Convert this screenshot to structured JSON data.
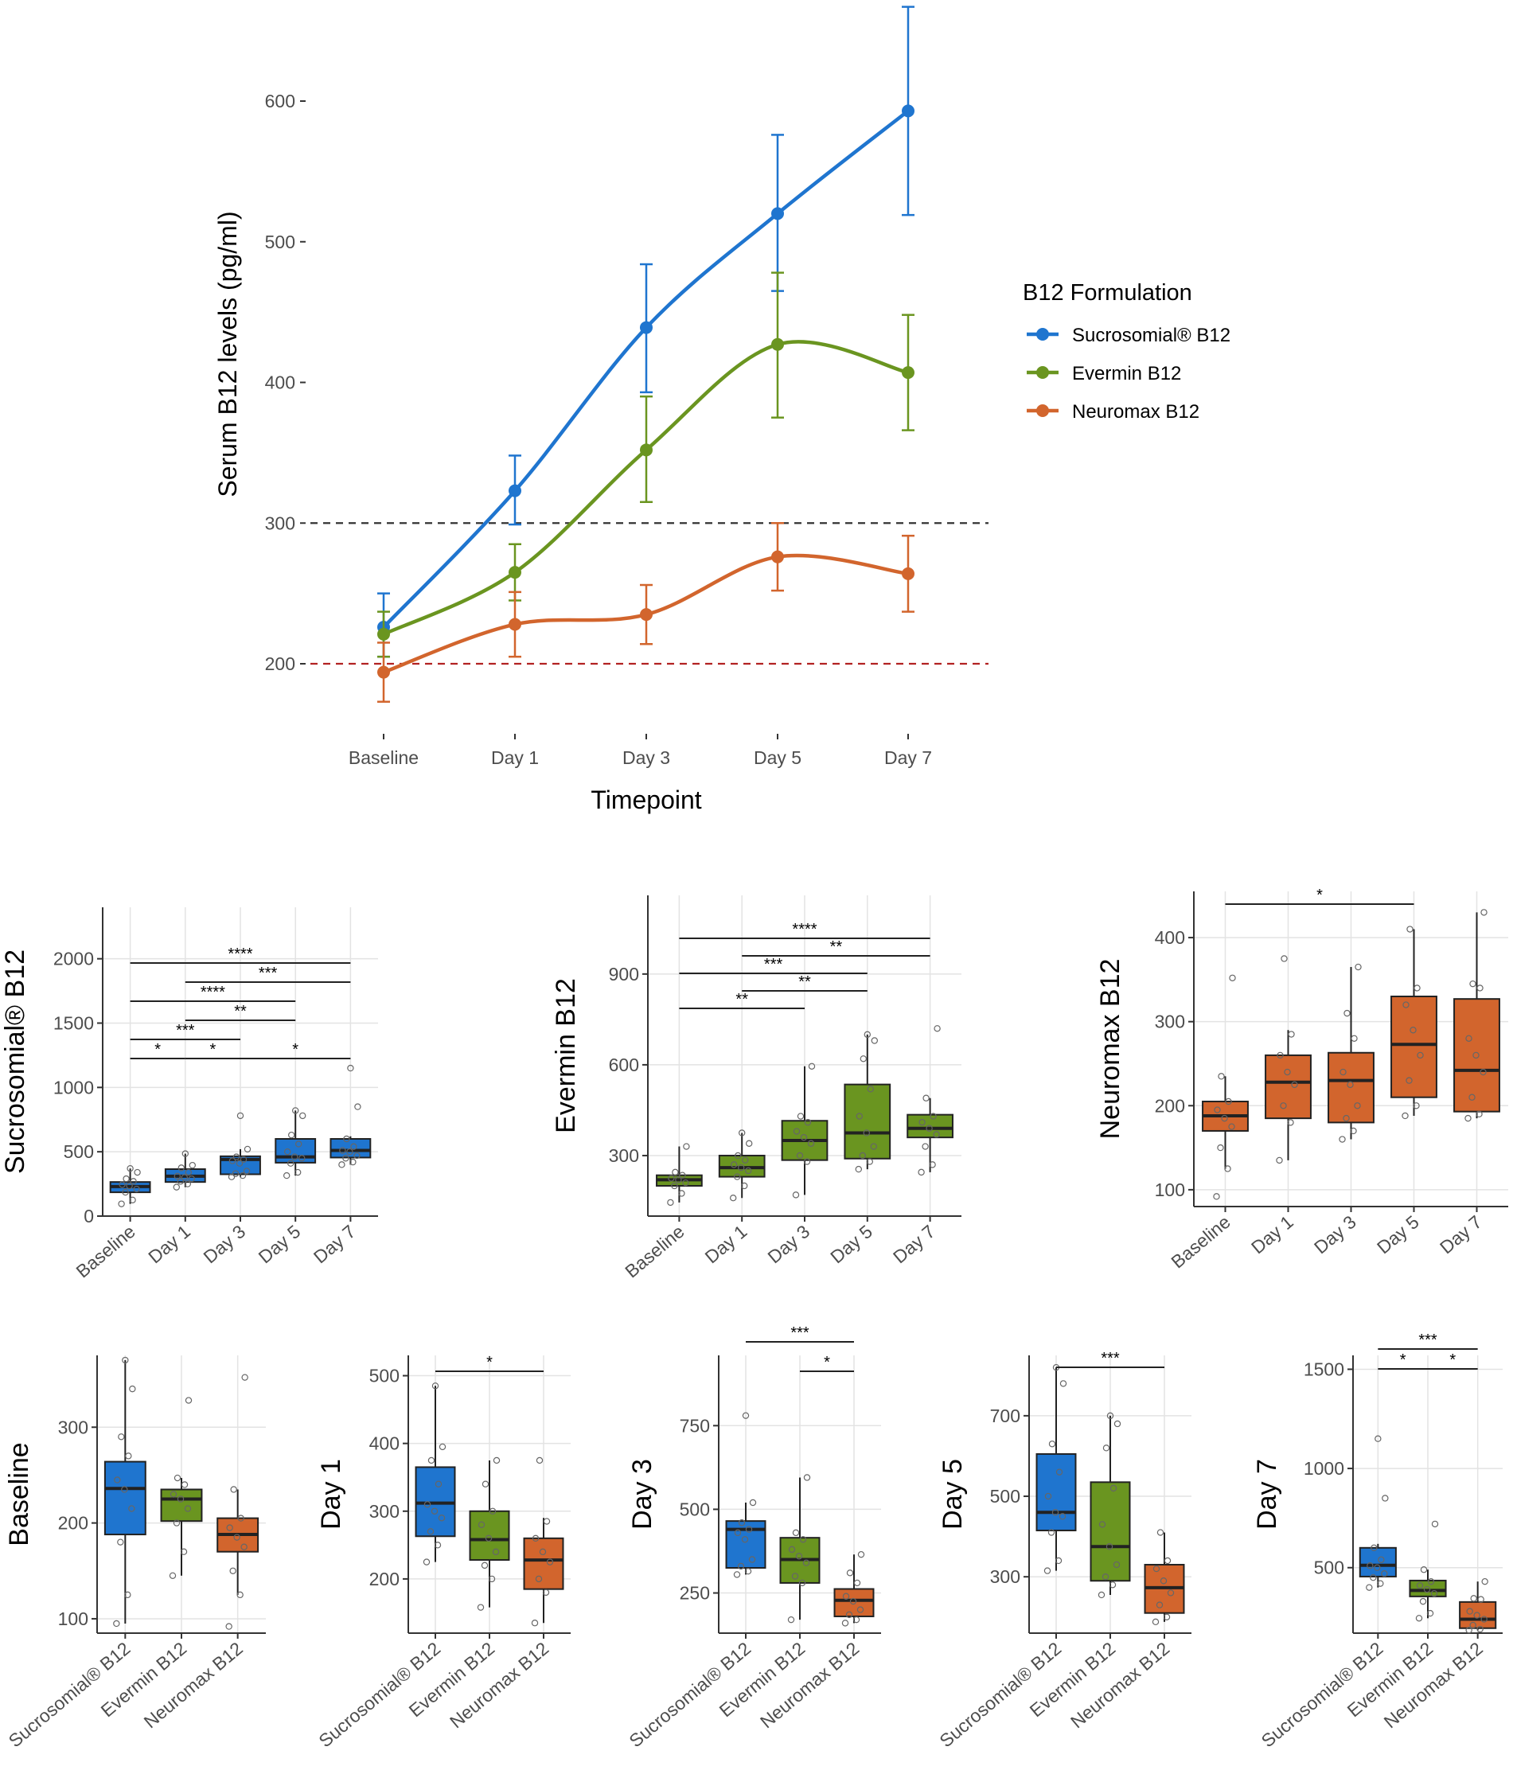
{
  "chart_data": [
    {
      "type": "line",
      "xlabel": "Timepoint",
      "ylabel": "Serum B12 levels (pg/ml)",
      "categories": [
        "Baseline",
        "Day 1",
        "Day 3",
        "Day 5",
        "Day 7"
      ],
      "yticks": [
        200,
        300,
        400,
        500,
        600
      ],
      "ylim": [
        160,
        670
      ],
      "reference_lines": [
        {
          "value": 300,
          "color": "#333333"
        },
        {
          "value": 200,
          "color": "#b22222"
        }
      ],
      "legend_title": "B12 Formulation",
      "series": [
        {
          "name": "Sucrosomial® B12",
          "color": "#1f75cf",
          "values": [
            226,
            323,
            439,
            520,
            593
          ],
          "lower": [
            205,
            299,
            393,
            465,
            519
          ],
          "upper": [
            250,
            348,
            484,
            576,
            667
          ]
        },
        {
          "name": "Evermin B12",
          "color": "#6a9520",
          "values": [
            221,
            265,
            352,
            427,
            407
          ],
          "lower": [
            205,
            245,
            315,
            375,
            366
          ],
          "upper": [
            237,
            285,
            390,
            478,
            448
          ]
        },
        {
          "name": "Neuromax B12",
          "color": "#d2652d",
          "values": [
            194,
            228,
            235,
            276,
            264
          ],
          "lower": [
            173,
            205,
            214,
            252,
            237
          ],
          "upper": [
            215,
            251,
            256,
            300,
            291
          ]
        }
      ]
    },
    {
      "type": "box",
      "title": "Sucrosomial® B12",
      "color": "#1f75cf",
      "categories": [
        "Baseline",
        "Day 1",
        "Day 3",
        "Day 5",
        "Day 7"
      ],
      "yticks": [
        0,
        500,
        1000,
        1500,
        2000
      ],
      "ylim": [
        0,
        2400
      ],
      "boxes": [
        {
          "q1": 185,
          "median": 230,
          "q3": 265,
          "lo": 95,
          "hi": 370
        },
        {
          "q1": 265,
          "median": 310,
          "q3": 365,
          "lo": 225,
          "hi": 485
        },
        {
          "q1": 325,
          "median": 440,
          "q3": 465,
          "lo": 305,
          "hi": 520
        },
        {
          "q1": 415,
          "median": 460,
          "q3": 600,
          "lo": 315,
          "hi": 820
        },
        {
          "q1": 455,
          "median": 510,
          "q3": 600,
          "lo": 400,
          "hi": 620
        }
      ],
      "points": [
        [
          95,
          125,
          185,
          210,
          235,
          245,
          270,
          290,
          340,
          370
        ],
        [
          225,
          250,
          270,
          290,
          300,
          310,
          340,
          375,
          395,
          485
        ],
        [
          305,
          315,
          330,
          350,
          410,
          430,
          440,
          460,
          520,
          780
        ],
        [
          315,
          340,
          410,
          450,
          460,
          500,
          560,
          630,
          780,
          820
        ],
        [
          400,
          420,
          450,
          470,
          500,
          510,
          540,
          600,
          850,
          1150
        ]
      ],
      "comparisons": [
        {
          "from": 0,
          "to": 1,
          "label": "*"
        },
        {
          "from": 0,
          "to": 2,
          "label": "***"
        },
        {
          "from": 0,
          "to": 3,
          "label": "****"
        },
        {
          "from": 0,
          "to": 4,
          "label": "****"
        },
        {
          "from": 1,
          "to": 2,
          "label": "*"
        },
        {
          "from": 1,
          "to": 3,
          "label": "**"
        },
        {
          "from": 1,
          "to": 4,
          "label": "***"
        },
        {
          "from": 2,
          "to": 4,
          "label": "*"
        }
      ]
    },
    {
      "type": "box",
      "title": "Evermin B12",
      "color": "#6a9520",
      "categories": [
        "Baseline",
        "Day 1",
        "Day 3",
        "Day 5",
        "Day 7"
      ],
      "yticks": [
        300,
        600,
        900
      ],
      "ylim": [
        100,
        1160
      ],
      "boxes": [
        {
          "q1": 200,
          "median": 220,
          "q3": 235,
          "lo": 145,
          "hi": 330
        },
        {
          "q1": 230,
          "median": 260,
          "q3": 300,
          "lo": 160,
          "hi": 375
        },
        {
          "q1": 285,
          "median": 350,
          "q3": 415,
          "lo": 170,
          "hi": 595
        },
        {
          "q1": 290,
          "median": 375,
          "q3": 535,
          "lo": 255,
          "hi": 700
        },
        {
          "q1": 360,
          "median": 390,
          "q3": 435,
          "lo": 245,
          "hi": 490
        }
      ],
      "points": [
        [
          145,
          175,
          200,
          210,
          220,
          225,
          235,
          245,
          330
        ],
        [
          160,
          200,
          230,
          250,
          260,
          270,
          285,
          300,
          340,
          375
        ],
        [
          170,
          280,
          300,
          340,
          360,
          380,
          410,
          430,
          595
        ],
        [
          255,
          280,
          300,
          330,
          375,
          430,
          520,
          620,
          680,
          700
        ],
        [
          245,
          270,
          330,
          370,
          390,
          410,
          430,
          490,
          720
        ]
      ],
      "comparisons": [
        {
          "from": 0,
          "to": 2,
          "label": "**"
        },
        {
          "from": 0,
          "to": 3,
          "label": "***"
        },
        {
          "from": 0,
          "to": 4,
          "label": "****"
        },
        {
          "from": 1,
          "to": 3,
          "label": "**"
        },
        {
          "from": 1,
          "to": 4,
          "label": "**"
        }
      ]
    },
    {
      "type": "box",
      "title": "Neuromax B12",
      "color": "#d2652d",
      "categories": [
        "Baseline",
        "Day 1",
        "Day 3",
        "Day 5",
        "Day 7"
      ],
      "yticks": [
        100,
        200,
        300,
        400
      ],
      "ylim": [
        80,
        455
      ],
      "boxes": [
        {
          "q1": 170,
          "median": 188,
          "q3": 205,
          "lo": 125,
          "hi": 235
        },
        {
          "q1": 185,
          "median": 228,
          "q3": 260,
          "lo": 135,
          "hi": 290
        },
        {
          "q1": 180,
          "median": 230,
          "q3": 263,
          "lo": 160,
          "hi": 365
        },
        {
          "q1": 210,
          "median": 273,
          "q3": 330,
          "lo": 188,
          "hi": 410
        },
        {
          "q1": 193,
          "median": 242,
          "q3": 327,
          "lo": 185,
          "hi": 430
        }
      ],
      "points": [
        [
          92,
          125,
          150,
          175,
          185,
          195,
          205,
          235,
          352
        ],
        [
          135,
          180,
          200,
          225,
          240,
          260,
          285,
          375
        ],
        [
          160,
          170,
          185,
          200,
          225,
          240,
          280,
          310,
          365
        ],
        [
          188,
          200,
          230,
          260,
          290,
          320,
          340,
          410
        ],
        [
          185,
          190,
          210,
          240,
          260,
          280,
          340,
          345,
          430
        ]
      ],
      "comparisons": [
        {
          "from": 0,
          "to": 3,
          "label": "*"
        }
      ]
    },
    {
      "type": "box",
      "title": "Baseline",
      "categories": [
        "Sucrosomial® B12",
        "Evermin B12",
        "Neuromax B12"
      ],
      "colors": [
        "#1f75cf",
        "#6a9520",
        "#d2652d"
      ],
      "yticks": [
        100,
        200,
        300
      ],
      "ylim": [
        85,
        375
      ],
      "boxes": [
        {
          "q1": 188,
          "median": 236,
          "q3": 264,
          "lo": 95,
          "hi": 370
        },
        {
          "q1": 202,
          "median": 225,
          "q3": 235,
          "lo": 145,
          "hi": 247
        },
        {
          "q1": 170,
          "median": 188,
          "q3": 205,
          "lo": 125,
          "hi": 235
        }
      ],
      "points": [
        [
          95,
          125,
          180,
          215,
          235,
          245,
          270,
          290,
          340,
          370
        ],
        [
          145,
          170,
          200,
          215,
          225,
          230,
          240,
          247,
          328
        ],
        [
          92,
          125,
          150,
          175,
          185,
          195,
          205,
          235,
          352
        ]
      ],
      "comparisons": []
    },
    {
      "type": "box",
      "title": "Day 1",
      "categories": [
        "Sucrosomial® B12",
        "Evermin B12",
        "Neuromax B12"
      ],
      "colors": [
        "#1f75cf",
        "#6a9520",
        "#d2652d"
      ],
      "yticks": [
        200,
        300,
        400,
        500
      ],
      "ylim": [
        120,
        530
      ],
      "boxes": [
        {
          "q1": 263,
          "median": 312,
          "q3": 365,
          "lo": 225,
          "hi": 485
        },
        {
          "q1": 228,
          "median": 258,
          "q3": 300,
          "lo": 158,
          "hi": 375
        },
        {
          "q1": 185,
          "median": 228,
          "q3": 260,
          "lo": 135,
          "hi": 290
        }
      ],
      "points": [
        [
          225,
          250,
          270,
          290,
          300,
          310,
          340,
          375,
          395,
          485
        ],
        [
          158,
          200,
          220,
          240,
          260,
          280,
          300,
          340,
          375
        ],
        [
          135,
          180,
          200,
          225,
          240,
          260,
          285,
          375
        ]
      ],
      "comparisons": [
        {
          "from": 0,
          "to": 2,
          "label": "*"
        }
      ]
    },
    {
      "type": "box",
      "title": "Day 3",
      "categories": [
        "Sucrosomial® B12",
        "Evermin B12",
        "Neuromax B12"
      ],
      "colors": [
        "#1f75cf",
        "#6a9520",
        "#d2652d"
      ],
      "yticks": [
        250,
        500,
        750
      ],
      "ylim": [
        130,
        960
      ],
      "boxes": [
        {
          "q1": 325,
          "median": 440,
          "q3": 465,
          "lo": 305,
          "hi": 520
        },
        {
          "q1": 280,
          "median": 350,
          "q3": 415,
          "lo": 170,
          "hi": 595
        },
        {
          "q1": 180,
          "median": 228,
          "q3": 262,
          "lo": 160,
          "hi": 365
        }
      ],
      "points": [
        [
          305,
          315,
          330,
          350,
          410,
          430,
          440,
          460,
          520,
          780
        ],
        [
          170,
          280,
          300,
          340,
          360,
          380,
          410,
          430,
          595
        ],
        [
          160,
          170,
          185,
          200,
          225,
          240,
          280,
          310,
          365
        ]
      ],
      "comparisons": [
        {
          "from": 0,
          "to": 2,
          "label": "***"
        },
        {
          "from": 1,
          "to": 2,
          "label": "*"
        }
      ]
    },
    {
      "type": "box",
      "title": "Day 5",
      "categories": [
        "Sucrosomial® B12",
        "Evermin B12",
        "Neuromax B12"
      ],
      "colors": [
        "#1f75cf",
        "#6a9520",
        "#d2652d"
      ],
      "yticks": [
        300,
        500,
        700
      ],
      "ylim": [
        160,
        850
      ],
      "boxes": [
        {
          "q1": 415,
          "median": 460,
          "q3": 605,
          "lo": 315,
          "hi": 820
        },
        {
          "q1": 290,
          "median": 375,
          "q3": 535,
          "lo": 255,
          "hi": 700
        },
        {
          "q1": 210,
          "median": 273,
          "q3": 330,
          "lo": 188,
          "hi": 410
        }
      ],
      "points": [
        [
          315,
          340,
          410,
          450,
          460,
          500,
          560,
          630,
          780,
          820
        ],
        [
          255,
          280,
          300,
          330,
          375,
          430,
          520,
          620,
          680,
          700
        ],
        [
          188,
          200,
          230,
          260,
          290,
          320,
          340,
          410
        ]
      ],
      "comparisons": [
        {
          "from": 0,
          "to": 2,
          "label": "***"
        }
      ]
    },
    {
      "type": "box",
      "title": "Day 7",
      "categories": [
        "Sucrosomial® B12",
        "Evermin B12",
        "Neuromax B12"
      ],
      "colors": [
        "#1f75cf",
        "#6a9520",
        "#d2652d"
      ],
      "yticks": [
        500,
        1000,
        1500
      ],
      "ylim": [
        170,
        1570
      ],
      "boxes": [
        {
          "q1": 455,
          "median": 512,
          "q3": 600,
          "lo": 400,
          "hi": 620
        },
        {
          "q1": 355,
          "median": 385,
          "q3": 435,
          "lo": 245,
          "hi": 490
        },
        {
          "q1": 195,
          "median": 240,
          "q3": 327,
          "lo": 185,
          "hi": 430
        }
      ],
      "points": [
        [
          400,
          420,
          450,
          470,
          500,
          510,
          540,
          600,
          850,
          1150
        ],
        [
          245,
          270,
          330,
          370,
          390,
          410,
          430,
          490,
          720
        ],
        [
          185,
          190,
          210,
          240,
          260,
          280,
          340,
          345,
          430
        ]
      ],
      "comparisons": [
        {
          "from": 0,
          "to": 1,
          "label": "*"
        },
        {
          "from": 0,
          "to": 2,
          "label": "***"
        },
        {
          "from": 1,
          "to": 2,
          "label": "*"
        }
      ]
    }
  ]
}
